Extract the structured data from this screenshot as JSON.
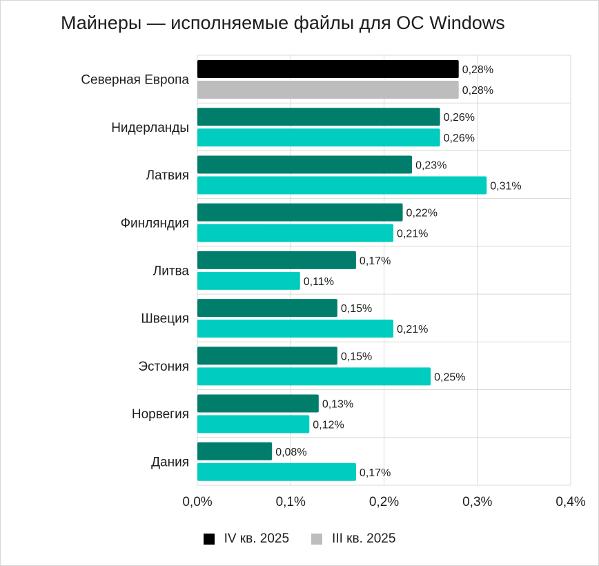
{
  "chart_data": {
    "type": "bar",
    "orientation": "horizontal",
    "title": "Майнеры — исполняемые файлы для ОС Windows",
    "categories": [
      "Северная Европа",
      "Нидерланды",
      "Латвия",
      "Финляндия",
      "Литва",
      "Швеция",
      "Эстония",
      "Норвегия",
      "Дания"
    ],
    "series": [
      {
        "name": "IV кв. 2025",
        "values": [
          0.28,
          0.26,
          0.23,
          0.22,
          0.17,
          0.15,
          0.15,
          0.13,
          0.08
        ],
        "labels": [
          "0,28%",
          "0,26%",
          "0,23%",
          "0,22%",
          "0,17%",
          "0,15%",
          "0,15%",
          "0,13%",
          "0,08%"
        ],
        "color": "#000000",
        "category_colors": [
          "#000000",
          "#007e6b",
          "#007e6b",
          "#007e6b",
          "#007e6b",
          "#007e6b",
          "#007e6b",
          "#007e6b",
          "#007e6b"
        ]
      },
      {
        "name": "III кв. 2025",
        "values": [
          0.28,
          0.26,
          0.31,
          0.21,
          0.11,
          0.21,
          0.25,
          0.12,
          0.17
        ],
        "labels": [
          "0,28%",
          "0,26%",
          "0,31%",
          "0,21%",
          "0,11%",
          "0,21%",
          "0,25%",
          "0,12%",
          "0,17%"
        ],
        "color": "#bdbdbd",
        "category_colors": [
          "#bdbdbd",
          "#00cdbf",
          "#00cdbf",
          "#00cdbf",
          "#00cdbf",
          "#00cdbf",
          "#00cdbf",
          "#00cdbf",
          "#00cdbf"
        ]
      }
    ],
    "xlim": [
      0,
      0.4
    ],
    "x_ticks": [
      "0,0%",
      "0,1%",
      "0,2%",
      "0,3%",
      "0,4%"
    ],
    "grid": true,
    "legend_position": "bottom"
  }
}
